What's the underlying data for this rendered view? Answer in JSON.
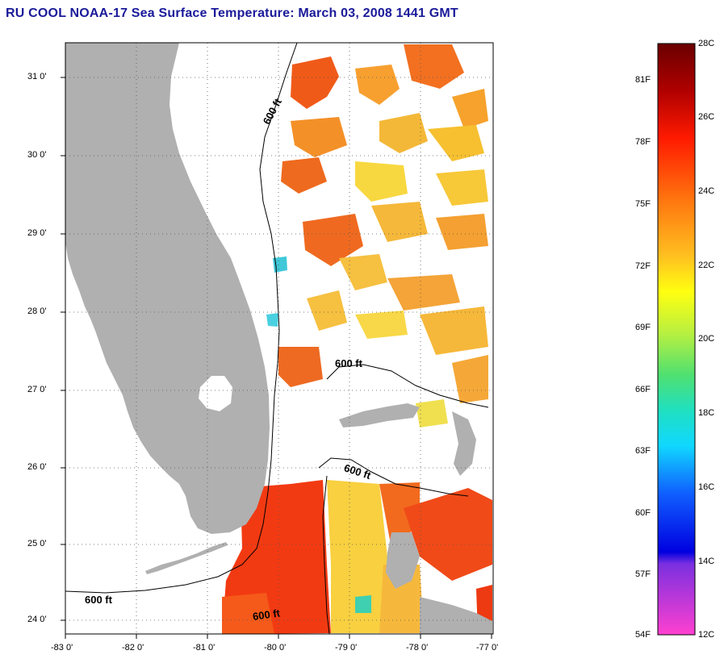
{
  "title": "RU COOL  NOAA-17  Sea Surface Temperature:  March 03, 2008 1441 GMT",
  "map": {
    "lon_labels": [
      "-83 0'",
      "-82 0'",
      "-81 0'",
      "-80 0'",
      "-79 0'",
      "-78 0'",
      "-77 0'"
    ],
    "lat_labels": [
      "31 0'",
      "30 0'",
      "29 0'",
      "28 0'",
      "27 0'",
      "26 0'",
      "25 0'",
      "24 0'"
    ],
    "contour_labels": [
      "600 ft",
      "600 ft",
      "600 ft",
      "600 ft",
      "600 ft"
    ],
    "land_color": "#b0b0b0",
    "cloud_color": "#ffffff"
  },
  "colorbar": {
    "fahrenheit_labels": [
      "81F",
      "78F",
      "75F",
      "72F",
      "69F",
      "66F",
      "63F",
      "60F",
      "57F",
      "54F"
    ],
    "celsius_labels": [
      "28C",
      "26C",
      "24C",
      "22C",
      "20C",
      "18C",
      "16C",
      "14C",
      "12C"
    ]
  }
}
